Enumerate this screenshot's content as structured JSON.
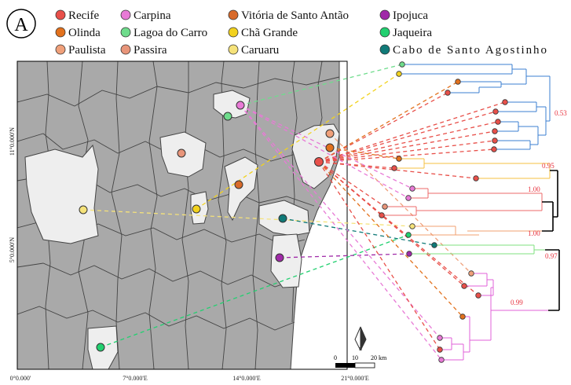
{
  "panel_label": "A",
  "legend": [
    {
      "label": "Recife",
      "color": "#e8504a"
    },
    {
      "label": "Olinda",
      "color": "#e2711d"
    },
    {
      "label": "Paulista",
      "color": "#f0a07a"
    },
    {
      "label": "Carpina",
      "color": "#e87ad6"
    },
    {
      "label": "Lagoa do Carro",
      "color": "#6fdc8c"
    },
    {
      "label": "Passira",
      "color": "#e8957a"
    },
    {
      "label": "Vitória de Santo Antão",
      "color": "#d86a2a"
    },
    {
      "label": "Chã Grande",
      "color": "#f2d21e"
    },
    {
      "label": "Caruaru",
      "color": "#f5e27a"
    },
    {
      "label": "Ipojuca",
      "color": "#a02aa8"
    },
    {
      "label": "Jaqueira",
      "color": "#22d070"
    },
    {
      "label": "Cabo de Santo Agostinho",
      "color": "#107a78"
    }
  ],
  "axes": {
    "lat_labels": [
      "11°0.000'N",
      "5°0.000'N"
    ],
    "lon_labels": [
      "0°0.000'",
      "7°0.000'E",
      "14°0.000'E",
      "21°0.000'E"
    ]
  },
  "scale_bar": {
    "labels": [
      "0",
      "10",
      "20 km"
    ]
  },
  "north_arrow": {
    "label": "N"
  },
  "map_fill": {
    "municipality": "#a9a9a9",
    "highlighted": "#eeeeee",
    "border": "#444444"
  },
  "tree_clades": [
    {
      "color": "#3b7fd0",
      "support": "0.53"
    },
    {
      "color": "#f5c042",
      "support": "0.95"
    },
    {
      "color": "#ec6a6a",
      "support": "1.00"
    },
    {
      "color": "#f0a070",
      "support": "1.00"
    },
    {
      "color": "#7fe07f",
      "support": "0.97"
    },
    {
      "color": "#e060d8",
      "support": "0.99"
    }
  ]
}
